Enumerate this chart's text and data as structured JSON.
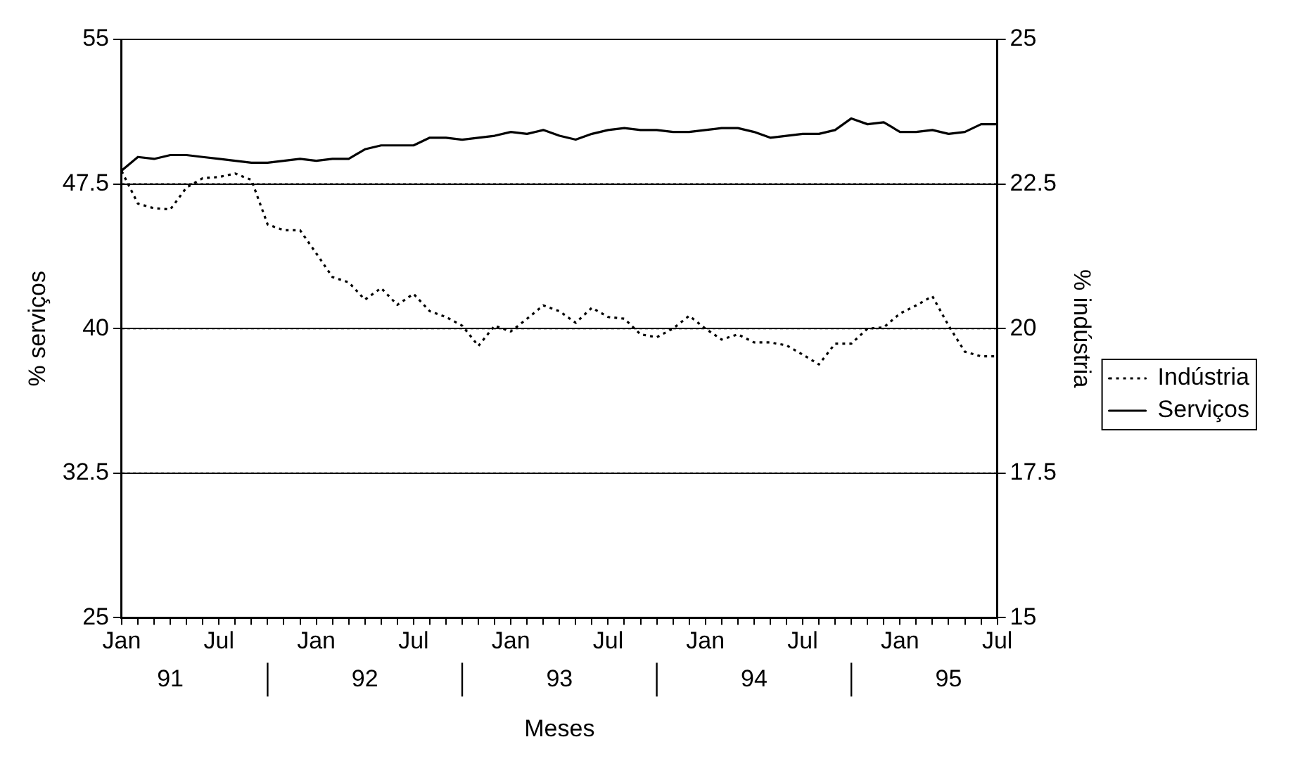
{
  "chart_data": {
    "type": "line",
    "categories": [
      "Jan",
      null,
      null,
      null,
      null,
      null,
      "Jul",
      null,
      null,
      null,
      null,
      null,
      "Jan",
      null,
      null,
      null,
      null,
      null,
      "Jul",
      null,
      null,
      null,
      null,
      null,
      "Jan",
      null,
      null,
      null,
      null,
      null,
      "Jul",
      null,
      null,
      null,
      null,
      null,
      "Jan",
      null,
      null,
      null,
      null,
      null,
      "Jul",
      null,
      null,
      null,
      null,
      null,
      "Jan",
      null,
      null,
      null,
      null,
      null,
      "Jul"
    ],
    "series": [
      {
        "name": "Indústria",
        "color": "#000000",
        "axis": "y2",
        "line_style": "dotted",
        "values": [
          22.72,
          22.16,
          22.08,
          22.06,
          22.44,
          22.6,
          22.62,
          22.68,
          22.57,
          21.8,
          21.7,
          21.7,
          21.3,
          20.89,
          20.8,
          20.5,
          20.7,
          20.41,
          20.6,
          20.3,
          20.2,
          20.05,
          19.7,
          20.05,
          19.95,
          20.17,
          20.4,
          20.3,
          20.1,
          20.36,
          20.2,
          20.17,
          19.9,
          19.85,
          20.0,
          20.22,
          20.0,
          19.81,
          19.9,
          19.76,
          19.76,
          19.71,
          19.55,
          19.38,
          19.74,
          19.74,
          20.0,
          20.02,
          20.26,
          20.4,
          20.56,
          20.05,
          19.6,
          19.52,
          19.52
        ]
      },
      {
        "name": "Serviços",
        "color": "#000000",
        "line_style": "solid",
        "values": [
          48.2,
          48.9,
          48.8,
          49.0,
          49.0,
          48.9,
          48.8,
          48.7,
          48.6,
          48.6,
          48.7,
          48.8,
          48.7,
          48.8,
          48.8,
          49.3,
          49.5,
          49.5,
          49.5,
          49.9,
          49.9,
          49.8,
          49.9,
          50.0,
          50.2,
          50.1,
          50.3,
          50.0,
          49.8,
          50.1,
          50.3,
          50.4,
          50.3,
          50.3,
          50.2,
          50.2,
          50.3,
          50.4,
          50.4,
          50.2,
          49.9,
          50.0,
          50.1,
          50.1,
          50.3,
          50.9,
          50.6,
          50.7,
          50.2,
          50.2,
          50.3,
          50.1,
          50.2,
          50.6,
          50.6
        ]
      }
    ],
    "ylim": [
      25,
      55
    ],
    "yticks": [
      25,
      32.5,
      40,
      47.5,
      55
    ],
    "y2lim": [
      15,
      25
    ],
    "y2ticks": [
      15,
      17.5,
      20,
      22.5,
      25
    ],
    "xlabel": "Meses",
    "ylabel": "% serviços",
    "y2label": "% indústria",
    "annotations": [
      "91",
      "92",
      "93",
      "94",
      "95"
    ],
    "grid": "y",
    "legend": "right",
    "marker": "none"
  }
}
